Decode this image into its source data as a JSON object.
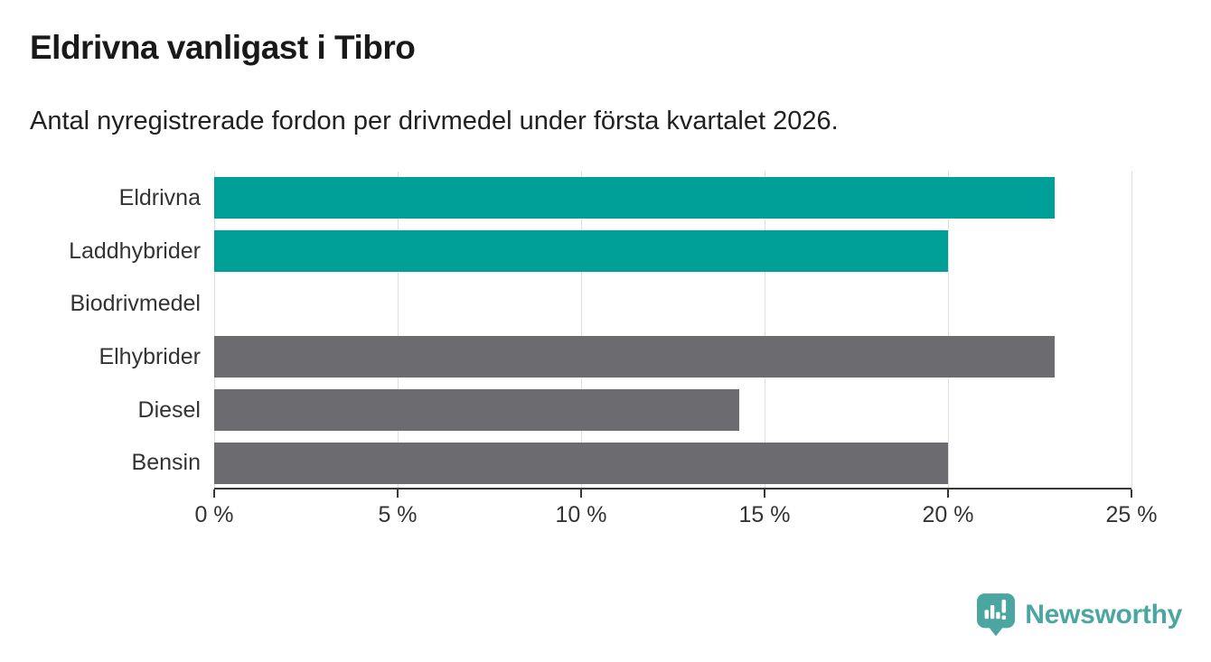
{
  "header": {
    "title": "Eldrivna vanligast i Tibro",
    "subtitle": "Antal nyregistrerade fordon per drivmedel under första kvartalet 2026."
  },
  "chart_data": {
    "type": "bar",
    "orientation": "horizontal",
    "title": "Eldrivna vanligast i Tibro",
    "subtitle": "Antal nyregistrerade fordon per drivmedel under första kvartalet 2026.",
    "categories": [
      "Eldrivna",
      "Laddhybrider",
      "Biodrivmedel",
      "Elhybrider",
      "Diesel",
      "Bensin"
    ],
    "values": [
      22.9,
      20,
      0,
      22.9,
      14.3,
      20
    ],
    "bar_colors": [
      "#00a099",
      "#00a099",
      "#6c6c70",
      "#6c6c70",
      "#6c6c70",
      "#6c6c70"
    ],
    "highlight_color": "#00a099",
    "default_color": "#6c6c70",
    "xlabel": "",
    "ylabel": "",
    "xlim": [
      0,
      25
    ],
    "x_ticks": [
      {
        "value": 0,
        "label": "0 %"
      },
      {
        "value": 5,
        "label": "5 %"
      },
      {
        "value": 10,
        "label": "10 %"
      },
      {
        "value": 15,
        "label": "15 %"
      },
      {
        "value": 20,
        "label": "20 %"
      },
      {
        "value": 25,
        "label": "25 %"
      }
    ],
    "grid": true,
    "legend": false
  },
  "footer": {
    "brand": "Newsworthy",
    "brand_color": "#4ba6a1",
    "logo_icon": "bar-chart-pin-icon"
  }
}
